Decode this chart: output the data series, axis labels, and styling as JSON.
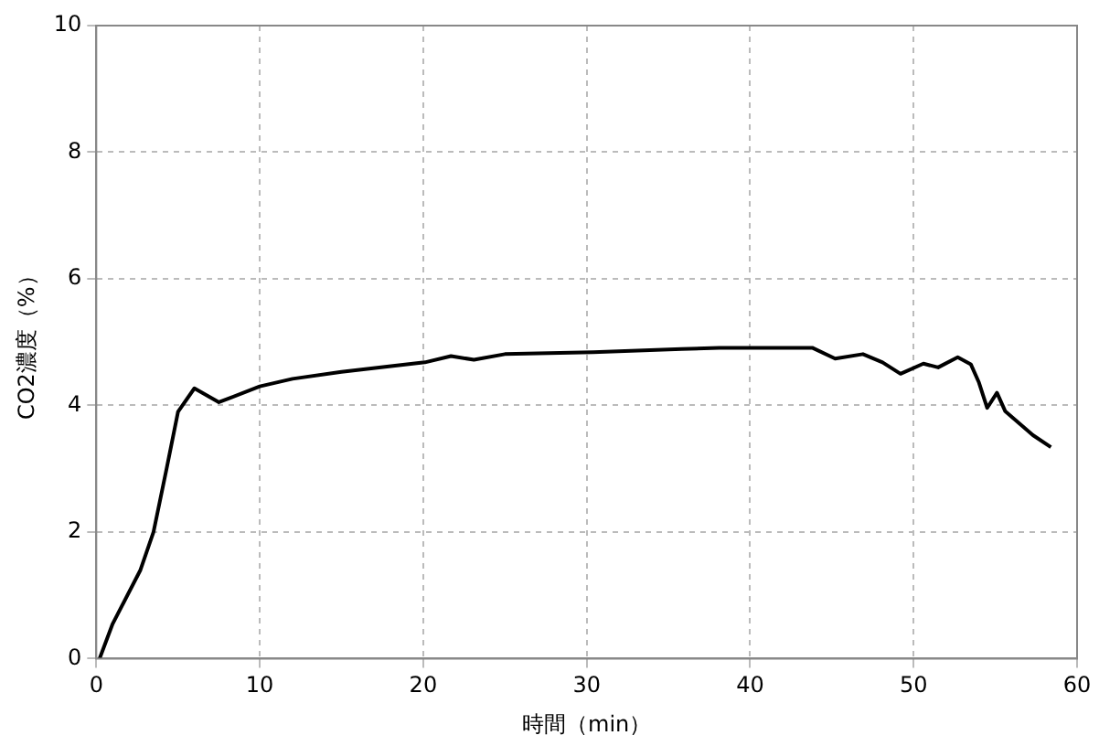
{
  "chart_data": {
    "type": "line",
    "xlabel": "時間（min）",
    "ylabel": "CO2濃度（%）",
    "x": [
      0.2,
      1,
      2.7,
      3.5,
      4.3,
      5.0,
      6.0,
      7.5,
      10,
      12,
      15,
      17.3,
      20.1,
      21.7,
      23.1,
      25,
      30.4,
      35.8,
      38.1,
      43.8,
      45.2,
      46.9,
      48.1,
      49.2,
      50.6,
      51.5,
      52.7,
      53.5,
      54.0,
      54.5,
      55.1,
      55.6,
      57.3,
      58.4
    ],
    "series": [
      {
        "color": "#000000",
        "values": [
          0,
          0.55,
          1.4,
          2.0,
          3.0,
          3.9,
          4.27,
          4.05,
          4.3,
          4.42,
          4.53,
          4.6,
          4.68,
          4.78,
          4.72,
          4.81,
          4.84,
          4.89,
          4.91,
          4.91,
          4.74,
          4.81,
          4.68,
          4.5,
          4.66,
          4.6,
          4.76,
          4.65,
          4.36,
          3.96,
          4.2,
          3.91,
          3.53,
          3.34
        ]
      }
    ],
    "xlim": [
      0,
      60
    ],
    "xticks": [
      0,
      10,
      20,
      30,
      40,
      50,
      60
    ],
    "ylim": [
      0,
      10
    ],
    "yticks": [
      0,
      2,
      4,
      6,
      8,
      10
    ],
    "grid": true,
    "legend": false,
    "marker": "none",
    "line_style": "solid"
  }
}
